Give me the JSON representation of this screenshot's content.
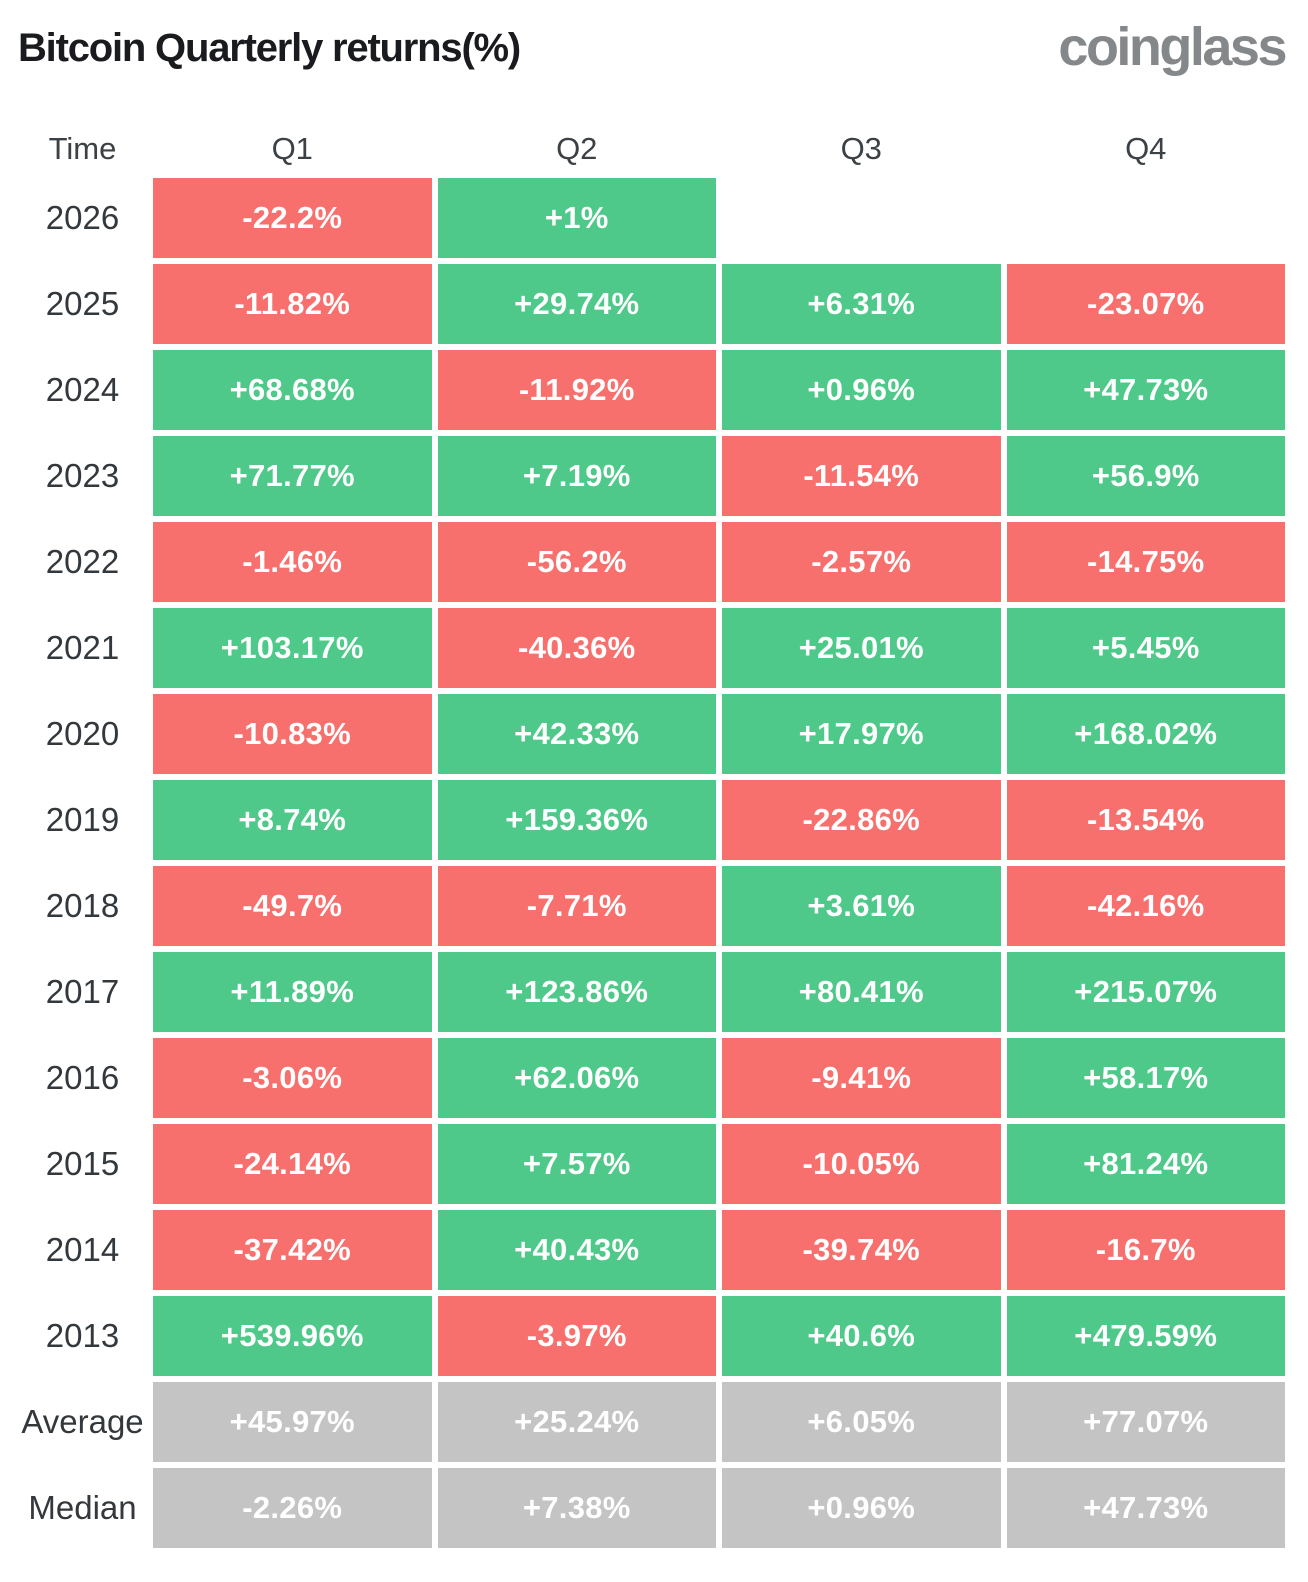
{
  "title": "Bitcoin Quarterly returns(%)",
  "logo_text": "coinglass",
  "colors": {
    "positive": "#4ec98a",
    "negative": "#f7706e",
    "neutral": "#c4c4c4",
    "cell_text": "#ffffff",
    "label_text": "#33383d",
    "logo_gray": "#85888b"
  },
  "table": {
    "columns": [
      "Time",
      "Q1",
      "Q2",
      "Q3",
      "Q4"
    ],
    "rows": [
      {
        "label": "2026",
        "neutral": false,
        "values": [
          "-22.2%",
          "+1%",
          null,
          null
        ]
      },
      {
        "label": "2025",
        "neutral": false,
        "values": [
          "-11.82%",
          "+29.74%",
          "+6.31%",
          "-23.07%"
        ]
      },
      {
        "label": "2024",
        "neutral": false,
        "values": [
          "+68.68%",
          "-11.92%",
          "+0.96%",
          "+47.73%"
        ]
      },
      {
        "label": "2023",
        "neutral": false,
        "values": [
          "+71.77%",
          "+7.19%",
          "-11.54%",
          "+56.9%"
        ]
      },
      {
        "label": "2022",
        "neutral": false,
        "values": [
          "-1.46%",
          "-56.2%",
          "-2.57%",
          "-14.75%"
        ]
      },
      {
        "label": "2021",
        "neutral": false,
        "values": [
          "+103.17%",
          "-40.36%",
          "+25.01%",
          "+5.45%"
        ]
      },
      {
        "label": "2020",
        "neutral": false,
        "values": [
          "-10.83%",
          "+42.33%",
          "+17.97%",
          "+168.02%"
        ]
      },
      {
        "label": "2019",
        "neutral": false,
        "values": [
          "+8.74%",
          "+159.36%",
          "-22.86%",
          "-13.54%"
        ]
      },
      {
        "label": "2018",
        "neutral": false,
        "values": [
          "-49.7%",
          "-7.71%",
          "+3.61%",
          "-42.16%"
        ]
      },
      {
        "label": "2017",
        "neutral": false,
        "values": [
          "+11.89%",
          "+123.86%",
          "+80.41%",
          "+215.07%"
        ]
      },
      {
        "label": "2016",
        "neutral": false,
        "values": [
          "-3.06%",
          "+62.06%",
          "-9.41%",
          "+58.17%"
        ]
      },
      {
        "label": "2015",
        "neutral": false,
        "values": [
          "-24.14%",
          "+7.57%",
          "-10.05%",
          "+81.24%"
        ]
      },
      {
        "label": "2014",
        "neutral": false,
        "values": [
          "-37.42%",
          "+40.43%",
          "-39.74%",
          "-16.7%"
        ]
      },
      {
        "label": "2013",
        "neutral": false,
        "values": [
          "+539.96%",
          "-3.97%",
          "+40.6%",
          "+479.59%"
        ]
      },
      {
        "label": "Average",
        "neutral": true,
        "values": [
          "+45.97%",
          "+25.24%",
          "+6.05%",
          "+77.07%"
        ]
      },
      {
        "label": "Median",
        "neutral": true,
        "values": [
          "-2.26%",
          "+7.38%",
          "+0.96%",
          "+47.73%"
        ]
      }
    ]
  },
  "chart_data": {
    "type": "heatmap",
    "title": "Bitcoin Quarterly returns(%)",
    "x_categories": [
      "Q1",
      "Q2",
      "Q3",
      "Q4"
    ],
    "y_categories": [
      "2026",
      "2025",
      "2024",
      "2023",
      "2022",
      "2021",
      "2020",
      "2019",
      "2018",
      "2017",
      "2016",
      "2015",
      "2014",
      "2013",
      "Average",
      "Median"
    ],
    "values": [
      [
        -22.2,
        1,
        null,
        null
      ],
      [
        -11.82,
        29.74,
        6.31,
        -23.07
      ],
      [
        68.68,
        -11.92,
        0.96,
        47.73
      ],
      [
        71.77,
        7.19,
        -11.54,
        56.9
      ],
      [
        -1.46,
        -56.2,
        -2.57,
        -14.75
      ],
      [
        103.17,
        -40.36,
        25.01,
        5.45
      ],
      [
        -10.83,
        42.33,
        17.97,
        168.02
      ],
      [
        8.74,
        159.36,
        -22.86,
        -13.54
      ],
      [
        -49.7,
        -7.71,
        3.61,
        -42.16
      ],
      [
        11.89,
        123.86,
        80.41,
        215.07
      ],
      [
        -3.06,
        62.06,
        -9.41,
        58.17
      ],
      [
        -24.14,
        7.57,
        -10.05,
        81.24
      ],
      [
        -37.42,
        40.43,
        -39.74,
        -16.7
      ],
      [
        539.96,
        -3.97,
        40.6,
        479.59
      ],
      [
        45.97,
        25.24,
        6.05,
        77.07
      ],
      [
        -2.26,
        7.38,
        0.96,
        47.73
      ]
    ],
    "color_rule": "green if value >= 0, red if value < 0, gray for Average/Median summary rows",
    "unit": "%"
  }
}
